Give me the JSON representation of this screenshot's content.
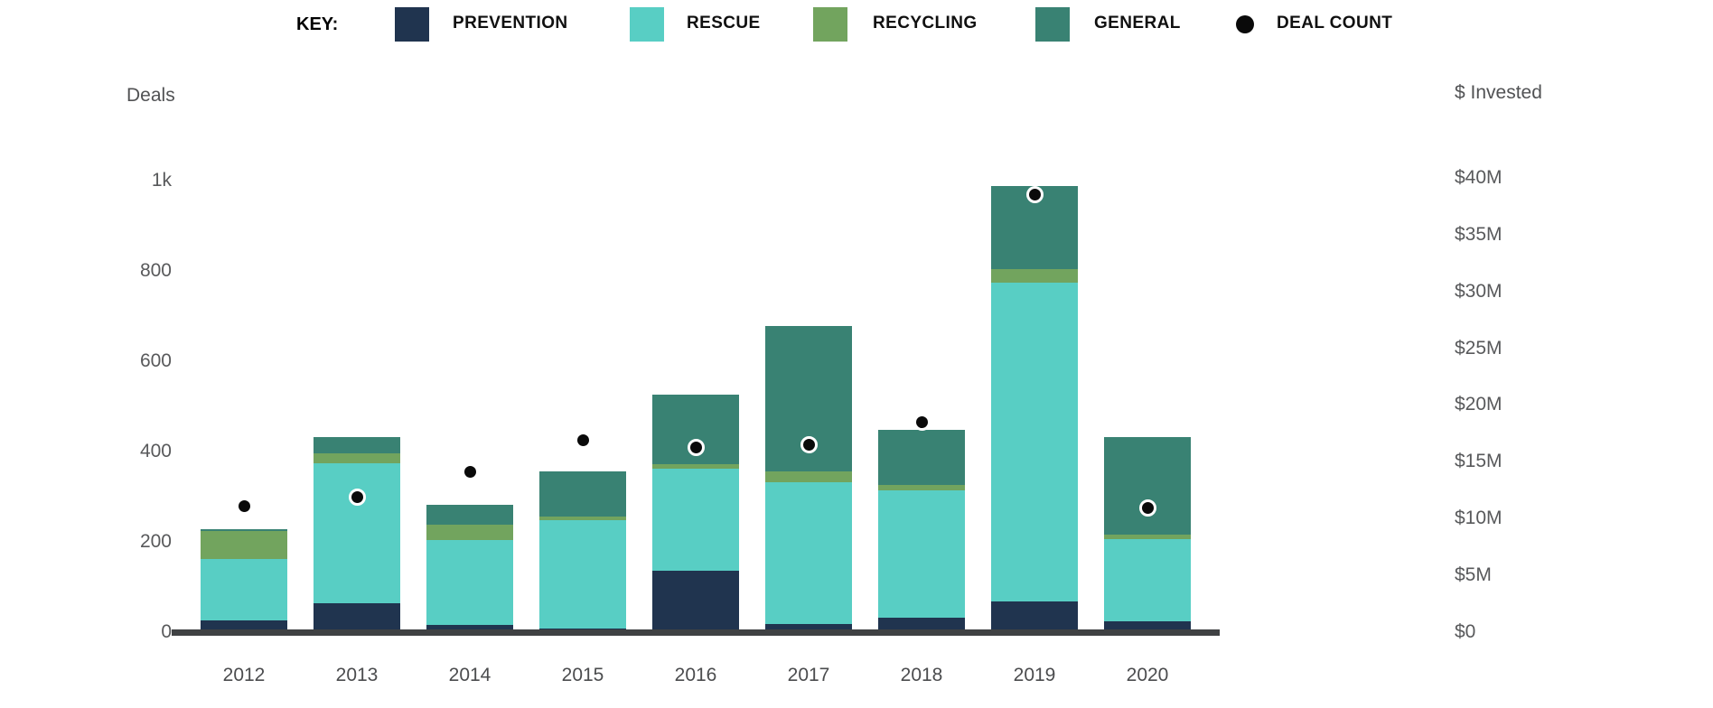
{
  "legend": {
    "key_label": "KEY:",
    "items": [
      {
        "id": "prevention",
        "label": "PREVENTION",
        "color": "#20344F"
      },
      {
        "id": "rescue",
        "label": "RESCUE",
        "color": "#58CEC4"
      },
      {
        "id": "recycling",
        "label": "RECYCLING",
        "color": "#72A45E"
      },
      {
        "id": "general",
        "label": "GENERAL",
        "color": "#398273"
      }
    ],
    "dot_item": {
      "id": "deal-count",
      "label": "DEAL COUNT",
      "color": "#0a0a0a"
    }
  },
  "chart_data": {
    "type": "bar",
    "subtype": "stacked-bars-with-dot-overlay",
    "title": "",
    "categories": [
      "2012",
      "2013",
      "2014",
      "2015",
      "2016",
      "2017",
      "2018",
      "2019",
      "2020"
    ],
    "series": [
      {
        "name": "PREVENTION",
        "color": "#20344F",
        "values_musd": [
          1.3,
          2.8,
          0.9,
          0.6,
          5.7,
          1.0,
          1.5,
          3.0,
          1.2
        ]
      },
      {
        "name": "RESCUE",
        "color": "#58CEC4",
        "values_musd": [
          5.4,
          12.4,
          7.5,
          9.6,
          9.0,
          12.5,
          11.3,
          28.2,
          7.3
        ]
      },
      {
        "name": "RECYCLING",
        "color": "#72A45E",
        "values_musd": [
          2.5,
          0.9,
          1.4,
          0.25,
          0.45,
          1.0,
          0.45,
          1.2,
          0.35
        ]
      },
      {
        "name": "GENERAL",
        "color": "#398273",
        "values_musd": [
          0.15,
          1.4,
          1.7,
          4.05,
          6.15,
          12.9,
          4.95,
          7.4,
          8.65
        ]
      }
    ],
    "totals_musd": [
      9.35,
      17.5,
      11.5,
      14.5,
      21.3,
      27.4,
      18.2,
      39.8,
      17.5
    ],
    "deal_counts": [
      280,
      300,
      355,
      425,
      410,
      415,
      465,
      970,
      275
    ],
    "dot_series_name": "DEAL COUNT",
    "left_axis": {
      "title": "Deals",
      "min": 0,
      "max": 1000,
      "ticks": [
        "0",
        "200",
        "400",
        "600",
        "800",
        "1k"
      ]
    },
    "right_axis": {
      "title": "$ Invested",
      "min": 0,
      "max": 40,
      "ticks": [
        "$0",
        "$5M",
        "$10M",
        "$15M",
        "$20M",
        "$25M",
        "$30M",
        "$35M",
        "$40M"
      ]
    },
    "grid": false,
    "legend_position": "top",
    "axis_line_color": "#3f4143"
  }
}
